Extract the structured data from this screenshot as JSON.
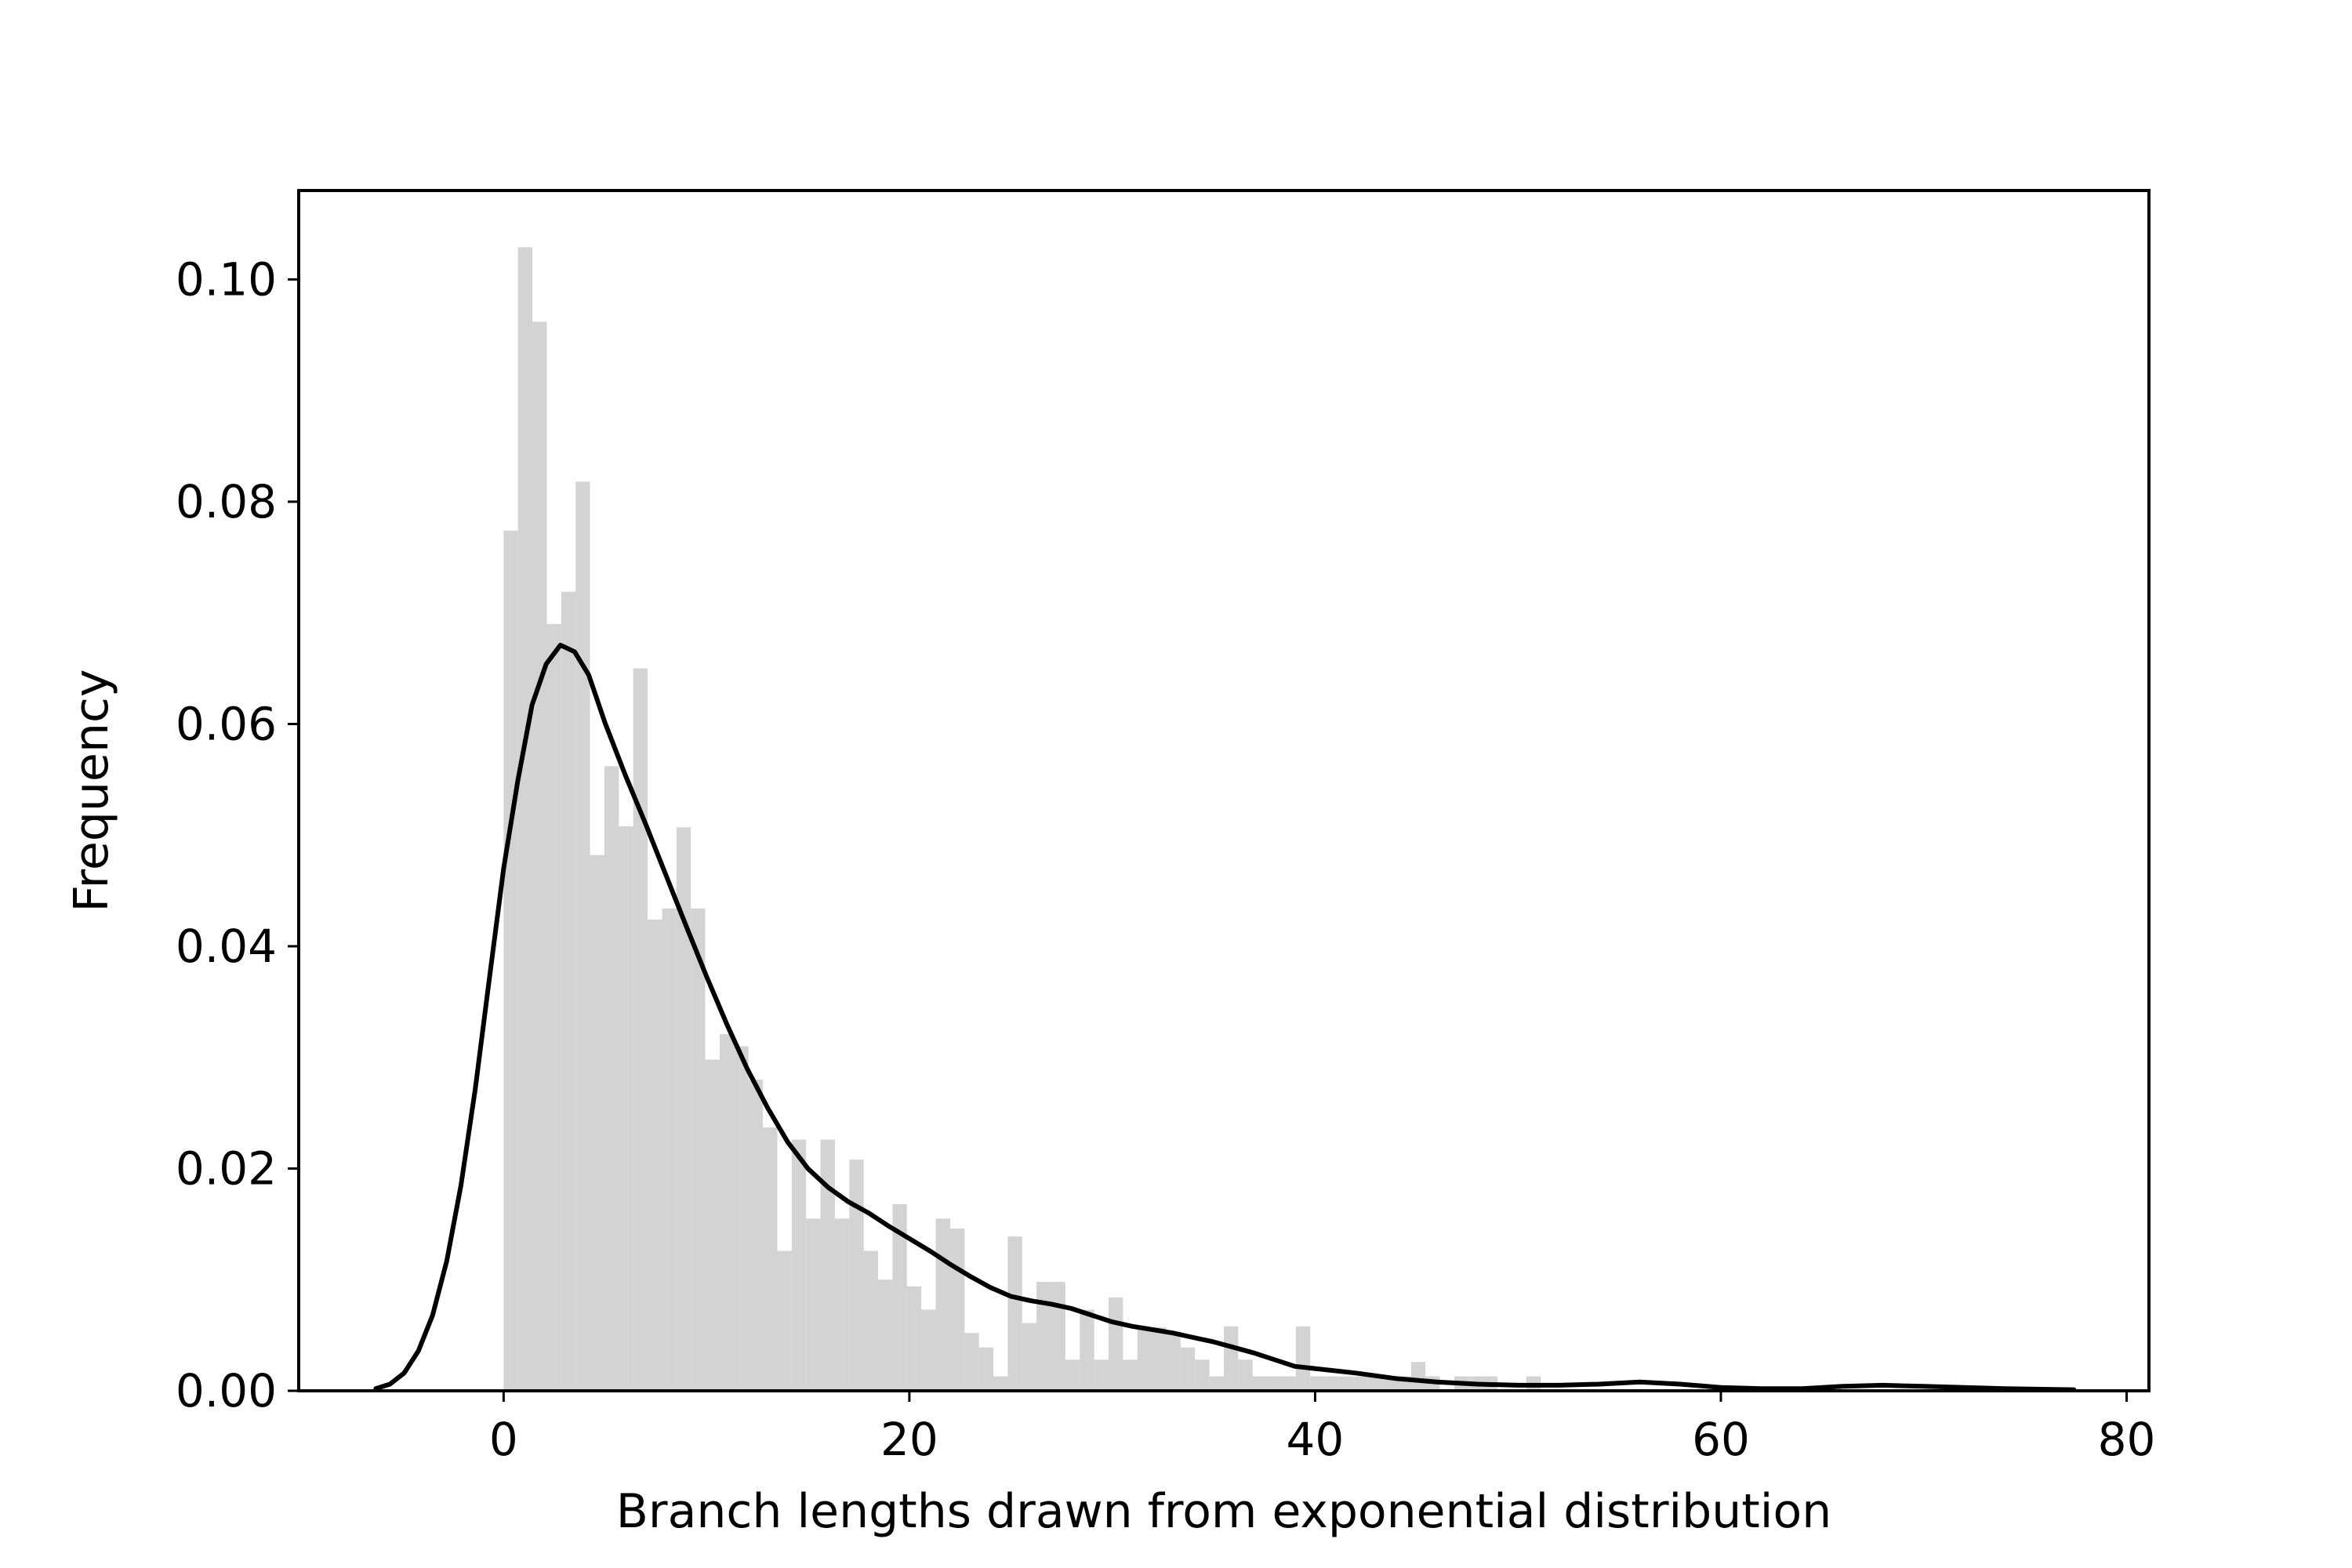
{
  "chart_data": {
    "type": "bar",
    "xlabel": "Branch lengths drawn from exponential distribution",
    "ylabel": "Frequency",
    "xlim": [
      -10.1,
      81.1
    ],
    "ylim": [
      0,
      0.108
    ],
    "x_ticks": [
      0,
      20,
      40,
      60,
      80
    ],
    "y_ticks": [
      0,
      0.02,
      0.04,
      0.06,
      0.08,
      0.1
    ],
    "x_tick_labels": [
      "0",
      "20",
      "40",
      "60",
      "80"
    ],
    "y_tick_labels": [
      "0.00",
      "0.02",
      "0.04",
      "0.06",
      "0.08",
      "0.10"
    ],
    "grid": false,
    "histogram": {
      "bin_start": 0,
      "bin_width": 0.71,
      "color": "#d3d3d3",
      "heights": [
        0.0774,
        0.1029,
        0.0962,
        0.069,
        0.0719,
        0.0818,
        0.0482,
        0.0562,
        0.0508,
        0.065,
        0.0424,
        0.0434,
        0.0507,
        0.0434,
        0.0298,
        0.0321,
        0.031,
        0.028,
        0.0237,
        0.0126,
        0.0226,
        0.0155,
        0.0226,
        0.0155,
        0.0208,
        0.0126,
        0.01,
        0.0168,
        0.0094,
        0.0073,
        0.0155,
        0.0146,
        0.0052,
        0.0039,
        0.0013,
        0.0139,
        0.0061,
        0.0098,
        0.0098,
        0.0028,
        0.0073,
        0.0028,
        0.0084,
        0.0028,
        0.0057,
        0.0057,
        0.0052,
        0.0039,
        0.0028,
        0.0013,
        0.0058,
        0.0028,
        0.0013,
        0.0013,
        0.0013,
        0.0058,
        0.0013,
        0.0013,
        0.0013,
        0.0013,
        0.0013,
        0.0013,
        0.0013,
        0.0026,
        0.0013,
        0.0,
        0.0013,
        0.0013,
        0.0013,
        0.0,
        0.0,
        0.0013,
        0.0,
        0.0,
        0.0,
        0.0,
        0.0,
        0.0,
        0.0,
        0.0,
        0.0,
        0.0,
        0.0,
        0.0,
        0.0,
        0.0,
        0.0,
        0.0,
        0.0,
        0.0,
        0.0,
        0.0,
        0.0,
        0.0,
        0.0,
        0.0,
        0.0,
        0.0,
        0.0,
        0.0,
        0.0,
        0.0,
        0.0,
        0.0,
        0.0,
        0.0,
        0.0,
        0.0,
        0.0,
        0.0
      ]
    },
    "kde": {
      "color": "#000000",
      "x": [
        -6.3,
        -5.6,
        -4.9,
        -4.2,
        -3.5,
        -2.8,
        -2.1,
        -1.4,
        -0.7,
        0,
        0.7,
        1.4,
        2.1,
        2.8,
        3.5,
        4.2,
        5,
        6,
        7,
        8,
        9,
        10,
        11,
        12,
        13,
        14,
        15,
        16,
        17,
        18,
        19,
        20,
        21,
        22,
        23,
        24,
        25,
        26,
        27,
        28,
        29,
        30,
        31,
        32,
        33,
        34,
        35,
        36,
        37,
        38,
        39,
        40,
        42,
        44,
        46,
        48,
        50,
        52,
        54,
        56,
        58,
        60,
        62,
        64,
        66,
        68,
        70,
        72,
        74,
        77.4
      ],
      "y": [
        0.0002,
        0.0006,
        0.0016,
        0.0036,
        0.0068,
        0.0117,
        0.0185,
        0.0271,
        0.0371,
        0.047,
        0.0549,
        0.0617,
        0.0654,
        0.0671,
        0.0665,
        0.0644,
        0.0601,
        0.0554,
        0.051,
        0.0464,
        0.0418,
        0.0373,
        0.033,
        0.029,
        0.0255,
        0.0224,
        0.02,
        0.0183,
        0.017,
        0.016,
        0.0148,
        0.0137,
        0.0126,
        0.0114,
        0.0103,
        0.0093,
        0.0085,
        0.0081,
        0.0078,
        0.0074,
        0.0068,
        0.0062,
        0.0058,
        0.0055,
        0.0052,
        0.0048,
        0.0044,
        0.0039,
        0.0034,
        0.0028,
        0.0022,
        0.002,
        0.0016,
        0.0011,
        0.0008,
        0.0006,
        0.0005,
        0.0005,
        0.0006,
        0.0008,
        0.0006,
        0.0003,
        0.0002,
        0.0002,
        0.0004,
        0.0005,
        0.0004,
        0.0003,
        0.0002,
        0.0001
      ]
    }
  }
}
